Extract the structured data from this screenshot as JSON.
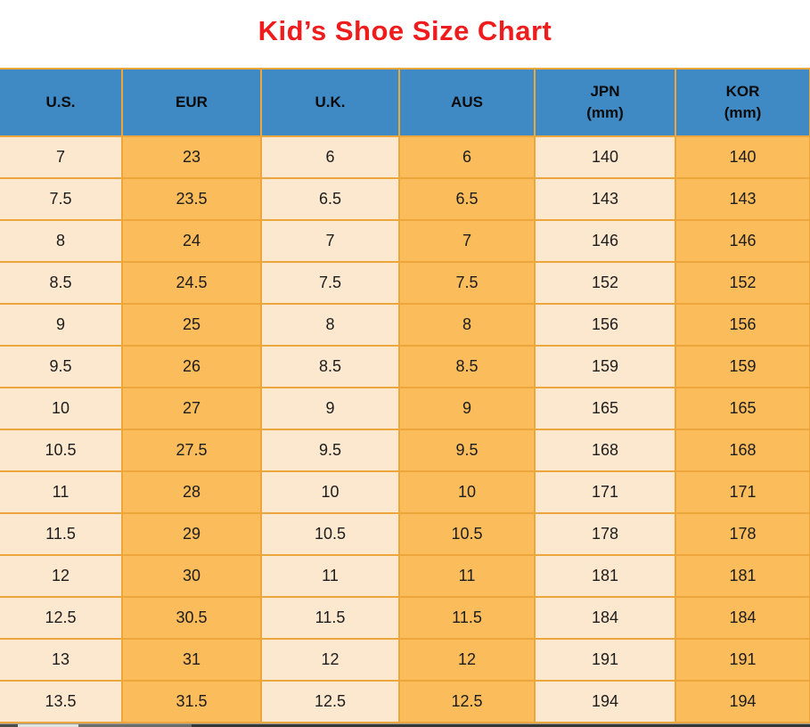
{
  "page": {
    "title": "Kid’s Shoe Size Chart"
  },
  "colors": {
    "title_red": "#ee1c1c",
    "header_blue": "#3f8ac5",
    "cell_cream": "#fce8cf",
    "cell_orange": "#fbbc5c",
    "grid_border": "#eda63c",
    "cell_text": "#1c1c1c"
  },
  "chart_data": {
    "type": "table",
    "title": "Kid’s Shoe Size Chart",
    "columns": [
      {
        "label": "U.S.",
        "sub": ""
      },
      {
        "label": "EUR",
        "sub": ""
      },
      {
        "label": "U.K.",
        "sub": ""
      },
      {
        "label": "AUS",
        "sub": ""
      },
      {
        "label": "JPN",
        "sub": "(mm)"
      },
      {
        "label": "KOR",
        "sub": "(mm)"
      }
    ],
    "rows": [
      [
        "7",
        "23",
        "6",
        "6",
        "140",
        "140"
      ],
      [
        "7.5",
        "23.5",
        "6.5",
        "6.5",
        "143",
        "143"
      ],
      [
        "8",
        "24",
        "7",
        "7",
        "146",
        "146"
      ],
      [
        "8.5",
        "24.5",
        "7.5",
        "7.5",
        "152",
        "152"
      ],
      [
        "9",
        "25",
        "8",
        "8",
        "156",
        "156"
      ],
      [
        "9.5",
        "26",
        "8.5",
        "8.5",
        "159",
        "159"
      ],
      [
        "10",
        "27",
        "9",
        "9",
        "165",
        "165"
      ],
      [
        "10.5",
        "27.5",
        "9.5",
        "9.5",
        "168",
        "168"
      ],
      [
        "11",
        "28",
        "10",
        "10",
        "171",
        "171"
      ],
      [
        "11.5",
        "29",
        "10.5",
        "10.5",
        "178",
        "178"
      ],
      [
        "12",
        "30",
        "11",
        "11",
        "181",
        "181"
      ],
      [
        "12.5",
        "30.5",
        "11.5",
        "11.5",
        "184",
        "184"
      ],
      [
        "13",
        "31",
        "12",
        "12",
        "191",
        "191"
      ],
      [
        "13.5",
        "31.5",
        "12.5",
        "12.5",
        "194",
        "194"
      ]
    ]
  }
}
